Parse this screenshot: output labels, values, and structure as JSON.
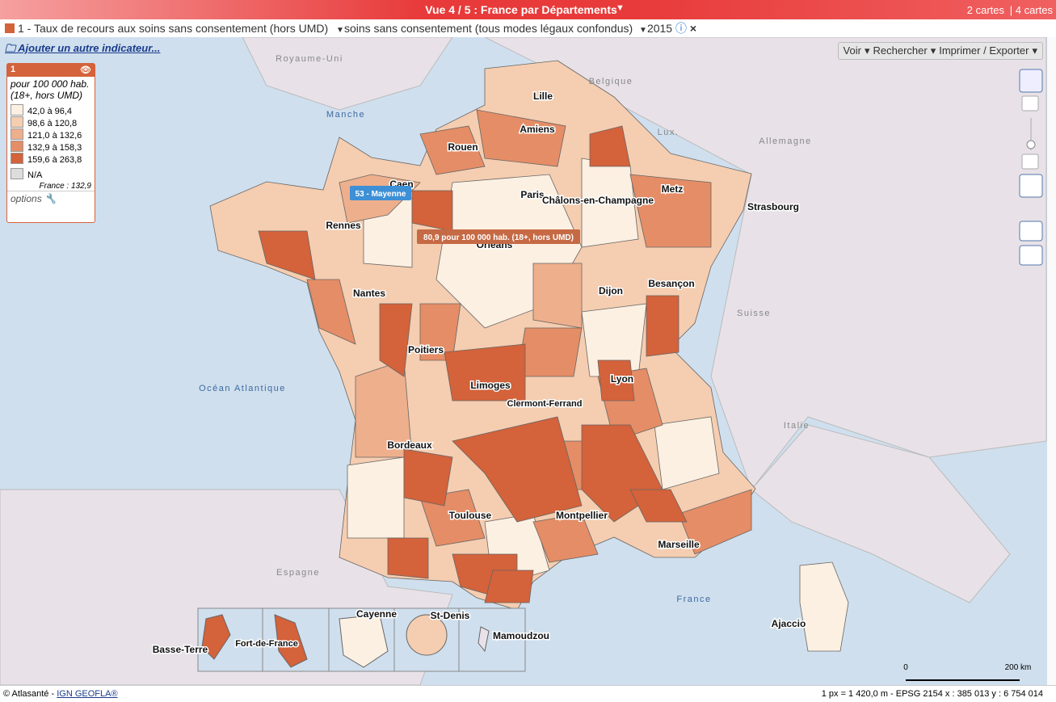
{
  "header": {
    "title": "Vue 4 / 5 : France par Départements",
    "maps_2": "2 cartes",
    "maps_4": "| 4 cartes"
  },
  "indicator": {
    "label": "1 - Taux de recours aux soins sans consentement (hors UMD)",
    "mode": "soins sans consentement (tous modes légaux confondus)",
    "year": "2015"
  },
  "add_indicator": "Ajouter un autre indicateur...",
  "legend": {
    "id": "1",
    "unit": "pour 100 000 hab. (18+, hors UMD)",
    "classes": [
      "42,0 à 96,4",
      "98,6 à 120,8",
      "121,0 à 132,6",
      "132,9 à 158,3",
      "159,6 à 263,8"
    ],
    "na": "N/A",
    "france": "France : 132,9",
    "options": "options"
  },
  "toolbar": [
    "Voir",
    "Rechercher",
    "Imprimer / Exporter"
  ],
  "map": {
    "places": [
      "Royaume-Uni",
      "Belgique",
      "Manche",
      "Lux.",
      "Allemagne",
      "Suisse",
      "Océan Atlantique",
      "Italie",
      "Espagne",
      "France",
      "Lille",
      "Amiens",
      "Rouen",
      "Caen",
      "Paris",
      "Châlons-en-Champagne",
      "Metz",
      "Strasbourg",
      "Rennes",
      "Orléans",
      "Nantes",
      "Dijon",
      "Besançon",
      "Poitiers",
      "Limoges",
      "Lyon",
      "Clermont-Ferrand",
      "Bordeaux",
      "Toulouse",
      "Montpellier",
      "Marseille",
      "Ajaccio",
      "Cayenne",
      "St-Denis",
      "Mamoudzou",
      "Basse-Terre",
      "Fort-de-France"
    ],
    "tooltip_name": "53 - Mayenne",
    "tooltip_value": "80,9 pour 100 000 hab. (18+, hors UMD)"
  },
  "scale": {
    "zero": "0",
    "max": "200 km"
  },
  "footer": {
    "credit": "© Atlasanté -",
    "source": "IGN GEOFLA®",
    "coords": "1 px = 1 420,0 m - EPSG 2154  x : 385 013   y : 6 754 014"
  }
}
